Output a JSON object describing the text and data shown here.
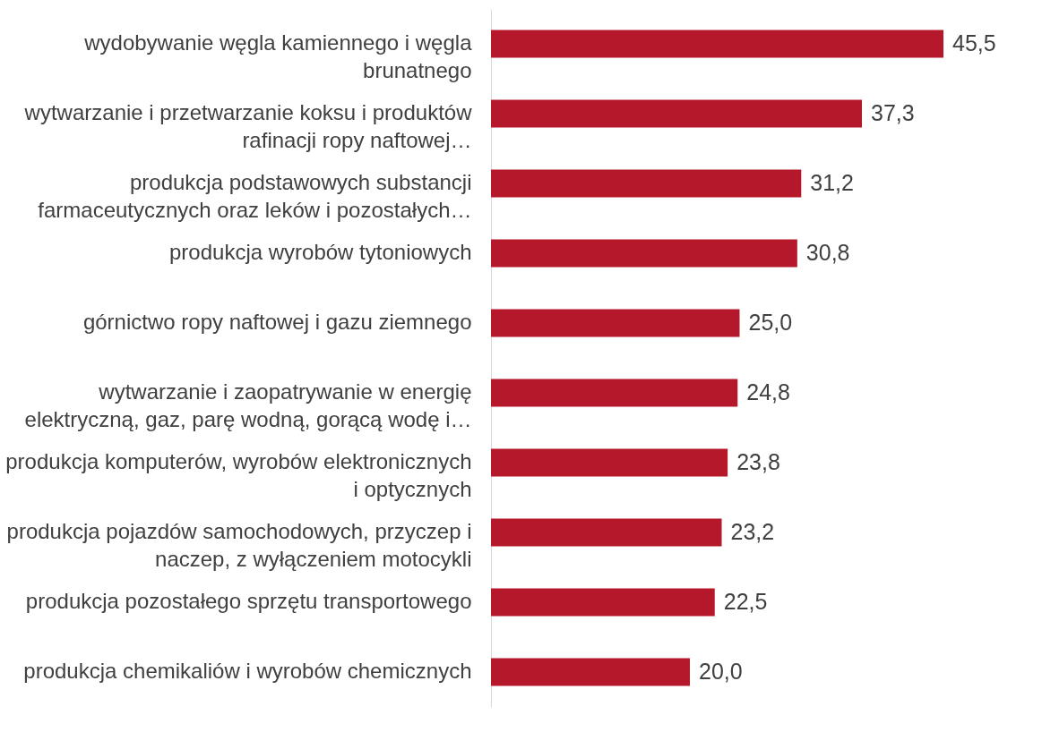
{
  "chart_data": {
    "type": "bar",
    "orientation": "horizontal",
    "categories": [
      "wydobywanie węgla kamiennego i węgla brunatnego",
      "wytwarzanie i przetwarzanie koksu i produktów rafinacji ropy naftowej…",
      "produkcja podstawowych substancji farmaceutycznych oraz leków i pozostałych…",
      "produkcja wyrobów tytoniowych",
      "górnictwo ropy naftowej i gazu ziemnego",
      "wytwarzanie i zaopatrywanie w energię elektryczną, gaz, parę wodną, gorącą wodę i…",
      "produkcja komputerów, wyrobów elektronicznych i optycznych",
      "produkcja pojazdów samochodowych, przyczep i naczep, z wyłączeniem motocykli",
      "produkcja pozostałego sprzętu transportowego",
      "produkcja chemikaliów i wyrobów chemicznych"
    ],
    "values": [
      45.5,
      37.3,
      31.2,
      30.8,
      25.0,
      24.8,
      23.8,
      23.2,
      22.5,
      20.0
    ],
    "value_labels": [
      "45,5",
      "37,3",
      "31,2",
      "30,8",
      "25,0",
      "24,8",
      "23,8",
      "23,2",
      "22,5",
      "20,0"
    ],
    "color": "#b5182b"
  }
}
